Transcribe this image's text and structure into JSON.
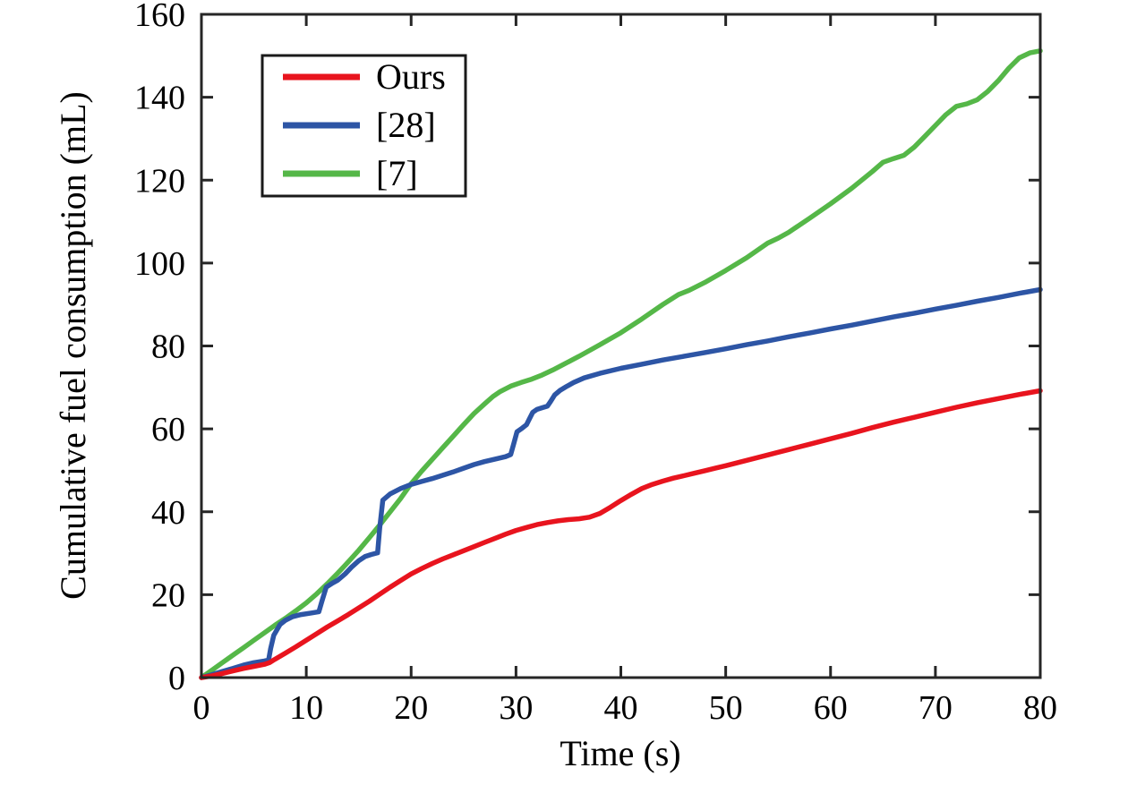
{
  "figure": {
    "background": "#ffffff",
    "frame_color": "#262626",
    "text_color": "#000000"
  },
  "chart_data": {
    "type": "line",
    "title": "",
    "xlabel": "Time (s)",
    "ylabel": "Cumulative fuel consumption (mL)",
    "xlim": [
      0,
      80
    ],
    "ylim": [
      0,
      160
    ],
    "xticks": [
      0,
      10,
      20,
      30,
      40,
      50,
      60,
      70,
      80
    ],
    "yticks": [
      0,
      20,
      40,
      60,
      80,
      100,
      120,
      140,
      160
    ],
    "grid": false,
    "legend_position": "upper-left-inside",
    "series": [
      {
        "name": "Ours",
        "color": "#e8141e",
        "points": [
          [
            0,
            0
          ],
          [
            1,
            0.4
          ],
          [
            2,
            1
          ],
          [
            3,
            1.6
          ],
          [
            4,
            2.2
          ],
          [
            5,
            2.7
          ],
          [
            6,
            3.2
          ],
          [
            6.5,
            3.6
          ],
          [
            7,
            4.4
          ],
          [
            8,
            5.9
          ],
          [
            9,
            7.4
          ],
          [
            10,
            9
          ],
          [
            11,
            10.6
          ],
          [
            12,
            12.2
          ],
          [
            13,
            13.7
          ],
          [
            14,
            15.2
          ],
          [
            15,
            16.8
          ],
          [
            16,
            18.4
          ],
          [
            17,
            20.1
          ],
          [
            18,
            21.8
          ],
          [
            19,
            23.4
          ],
          [
            20,
            25
          ],
          [
            21,
            26.3
          ],
          [
            22,
            27.5
          ],
          [
            23,
            28.6
          ],
          [
            24,
            29.6
          ],
          [
            25,
            30.6
          ],
          [
            26,
            31.6
          ],
          [
            27,
            32.6
          ],
          [
            28,
            33.6
          ],
          [
            29,
            34.6
          ],
          [
            30,
            35.5
          ],
          [
            31,
            36.2
          ],
          [
            32,
            36.9
          ],
          [
            33,
            37.4
          ],
          [
            34,
            37.8
          ],
          [
            35,
            38.1
          ],
          [
            36,
            38.3
          ],
          [
            37,
            38.7
          ],
          [
            38,
            39.6
          ],
          [
            39,
            41.1
          ],
          [
            40,
            42.7
          ],
          [
            41,
            44.2
          ],
          [
            42,
            45.6
          ],
          [
            43,
            46.6
          ],
          [
            44,
            47.4
          ],
          [
            45,
            48.1
          ],
          [
            46,
            48.7
          ],
          [
            47,
            49.3
          ],
          [
            48,
            49.9
          ],
          [
            49,
            50.5
          ],
          [
            50,
            51.1
          ],
          [
            52,
            52.4
          ],
          [
            54,
            53.7
          ],
          [
            56,
            55
          ],
          [
            58,
            56.3
          ],
          [
            60,
            57.6
          ],
          [
            62,
            58.9
          ],
          [
            64,
            60.3
          ],
          [
            66,
            61.6
          ],
          [
            68,
            62.8
          ],
          [
            70,
            64
          ],
          [
            72,
            65.2
          ],
          [
            74,
            66.3
          ],
          [
            76,
            67.3
          ],
          [
            78,
            68.3
          ],
          [
            80,
            69.2
          ]
        ]
      },
      {
        "name": "[28]",
        "color": "#2d55a5",
        "points": [
          [
            0,
            0
          ],
          [
            1,
            0.7
          ],
          [
            2,
            1.5
          ],
          [
            3,
            2.2
          ],
          [
            4,
            3
          ],
          [
            5,
            3.6
          ],
          [
            6,
            4
          ],
          [
            6.4,
            4.2
          ],
          [
            6.6,
            7
          ],
          [
            6.9,
            10.2
          ],
          [
            7.5,
            12.8
          ],
          [
            8,
            13.8
          ],
          [
            8.7,
            14.7
          ],
          [
            9.5,
            15.2
          ],
          [
            10.5,
            15.6
          ],
          [
            11.2,
            15.9
          ],
          [
            11.5,
            18.5
          ],
          [
            11.9,
            21.8
          ],
          [
            12.5,
            22.8
          ],
          [
            13,
            23.5
          ],
          [
            13.7,
            25
          ],
          [
            14.3,
            26.6
          ],
          [
            15,
            28.2
          ],
          [
            15.6,
            29.2
          ],
          [
            16.2,
            29.7
          ],
          [
            16.8,
            30.1
          ],
          [
            17,
            36
          ],
          [
            17.3,
            42.8
          ],
          [
            18,
            44.3
          ],
          [
            19,
            45.6
          ],
          [
            20,
            46.6
          ],
          [
            21,
            47.3
          ],
          [
            22,
            48
          ],
          [
            23,
            48.8
          ],
          [
            24,
            49.6
          ],
          [
            25,
            50.5
          ],
          [
            26,
            51.4
          ],
          [
            27,
            52.1
          ],
          [
            28,
            52.7
          ],
          [
            29,
            53.3
          ],
          [
            29.5,
            53.8
          ],
          [
            29.8,
            56.5
          ],
          [
            30.1,
            59.3
          ],
          [
            30.6,
            60.2
          ],
          [
            31,
            61
          ],
          [
            31.3,
            62.5
          ],
          [
            31.6,
            64
          ],
          [
            32,
            64.7
          ],
          [
            32.5,
            65.1
          ],
          [
            33,
            65.5
          ],
          [
            33.3,
            66.6
          ],
          [
            33.7,
            68.2
          ],
          [
            34.2,
            69.3
          ],
          [
            34.8,
            70.2
          ],
          [
            35.5,
            71.2
          ],
          [
            36.5,
            72.3
          ],
          [
            38,
            73.4
          ],
          [
            40,
            74.6
          ],
          [
            42,
            75.6
          ],
          [
            44,
            76.6
          ],
          [
            46,
            77.5
          ],
          [
            48,
            78.4
          ],
          [
            50,
            79.3
          ],
          [
            52,
            80.3
          ],
          [
            54,
            81.2
          ],
          [
            56,
            82.2
          ],
          [
            58,
            83.1
          ],
          [
            60,
            84.1
          ],
          [
            62,
            85
          ],
          [
            64,
            86
          ],
          [
            66,
            87
          ],
          [
            68,
            87.9
          ],
          [
            70,
            88.9
          ],
          [
            72,
            89.8
          ],
          [
            74,
            90.8
          ],
          [
            76,
            91.7
          ],
          [
            78,
            92.7
          ],
          [
            80,
            93.6
          ]
        ]
      },
      {
        "name": "[7]",
        "color": "#55b748",
        "points": [
          [
            0,
            0
          ],
          [
            1,
            1.8
          ],
          [
            2,
            3.6
          ],
          [
            3,
            5.4
          ],
          [
            4,
            7.2
          ],
          [
            5,
            9
          ],
          [
            6,
            10.8
          ],
          [
            7,
            12.6
          ],
          [
            8,
            14.3
          ],
          [
            9,
            16.1
          ],
          [
            10,
            18
          ],
          [
            11,
            20.2
          ],
          [
            12,
            22.6
          ],
          [
            13,
            25.2
          ],
          [
            14,
            27.9
          ],
          [
            15,
            30.7
          ],
          [
            16,
            33.7
          ],
          [
            17,
            36.8
          ],
          [
            18,
            40
          ],
          [
            19,
            43.2
          ],
          [
            20,
            46.8
          ],
          [
            21,
            49.8
          ],
          [
            22,
            52.6
          ],
          [
            23,
            55.4
          ],
          [
            24,
            58.2
          ],
          [
            25,
            61
          ],
          [
            26,
            63.7
          ],
          [
            27,
            66
          ],
          [
            27.8,
            67.8
          ],
          [
            28.5,
            69
          ],
          [
            29.5,
            70.3
          ],
          [
            30.5,
            71.2
          ],
          [
            31.5,
            72
          ],
          [
            32.5,
            73
          ],
          [
            33.5,
            74.2
          ],
          [
            34.5,
            75.5
          ],
          [
            36,
            77.5
          ],
          [
            38,
            80.3
          ],
          [
            40,
            83.2
          ],
          [
            42,
            86.5
          ],
          [
            44,
            90
          ],
          [
            45.5,
            92.4
          ],
          [
            46.5,
            93.4
          ],
          [
            48,
            95.3
          ],
          [
            50,
            98.2
          ],
          [
            52,
            101.3
          ],
          [
            54,
            104.8
          ],
          [
            55,
            106
          ],
          [
            56,
            107.4
          ],
          [
            58,
            110.8
          ],
          [
            60,
            114.3
          ],
          [
            62,
            118
          ],
          [
            64,
            122.1
          ],
          [
            65,
            124.3
          ],
          [
            66,
            125.2
          ],
          [
            67,
            126
          ],
          [
            68,
            128
          ],
          [
            69,
            130.6
          ],
          [
            70,
            133.2
          ],
          [
            71,
            135.8
          ],
          [
            72,
            137.8
          ],
          [
            73,
            138.4
          ],
          [
            74,
            139.4
          ],
          [
            75,
            141.4
          ],
          [
            76,
            144
          ],
          [
            77,
            147
          ],
          [
            78,
            149.5
          ],
          [
            79,
            150.7
          ],
          [
            80,
            151.2
          ]
        ]
      }
    ]
  }
}
